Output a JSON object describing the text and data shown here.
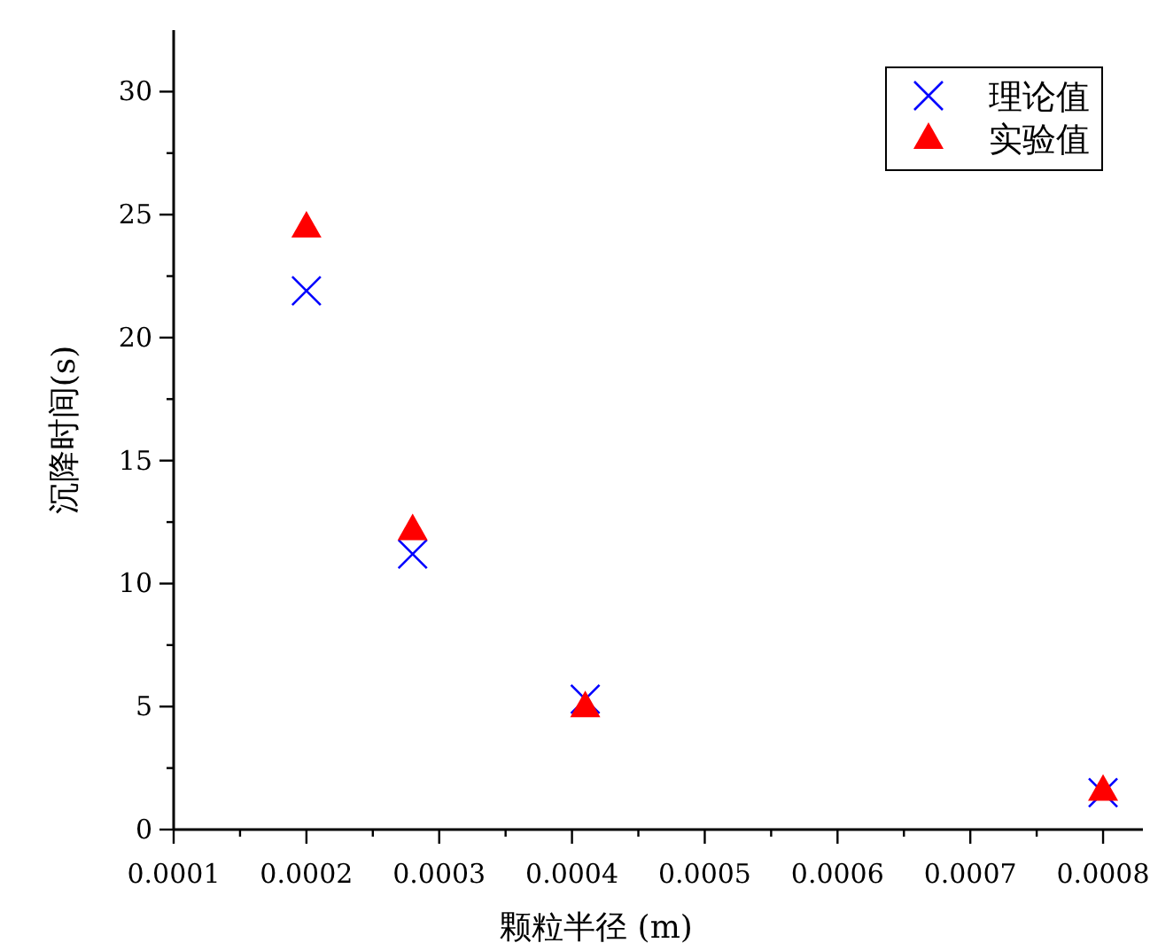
{
  "chart_data": {
    "type": "scatter",
    "xlabel": "颗粒半径 (m)",
    "ylabel": "沉降时间(s)",
    "x": [
      0.0002,
      0.00028,
      0.00041,
      0.0008
    ],
    "series": [
      {
        "name": "理论值",
        "color": "#0000ff",
        "marker": "cross",
        "values": [
          21.9,
          11.2,
          5.3,
          1.5
        ]
      },
      {
        "name": "实验值",
        "color": "#ff0000",
        "marker": "triangle",
        "values": [
          24.5,
          12.2,
          5.0,
          1.6
        ]
      }
    ],
    "xlim": [
      0.0001,
      0.00083
    ],
    "xticks": [
      {
        "value": 0.0001,
        "label": "0.0001"
      },
      {
        "value": 0.00015,
        "label": null
      },
      {
        "value": 0.0002,
        "label": "0.0002"
      },
      {
        "value": 0.00025,
        "label": null
      },
      {
        "value": 0.0003,
        "label": "0.0003"
      },
      {
        "value": 0.00035,
        "label": null
      },
      {
        "value": 0.0004,
        "label": "0.0004"
      },
      {
        "value": 0.00045,
        "label": null
      },
      {
        "value": 0.0005,
        "label": "0.0005"
      },
      {
        "value": 0.00055,
        "label": null
      },
      {
        "value": 0.0006,
        "label": "0.0006"
      },
      {
        "value": 0.00065,
        "label": null
      },
      {
        "value": 0.0007,
        "label": "0.0007"
      },
      {
        "value": 0.00075,
        "label": null
      },
      {
        "value": 0.0008,
        "label": "0.0008"
      }
    ],
    "ylim": [
      0,
      32.5
    ],
    "yticks": [
      0,
      {
        "value": 2.5,
        "label": null
      },
      5,
      {
        "value": 7.5,
        "label": null
      },
      10,
      {
        "value": 12.5,
        "label": null
      },
      15,
      {
        "value": 17.5,
        "label": null
      },
      20,
      {
        "value": 22.5,
        "label": null
      },
      25,
      {
        "value": 27.5,
        "label": null
      },
      30
    ],
    "grid": false,
    "legend": "top right"
  }
}
